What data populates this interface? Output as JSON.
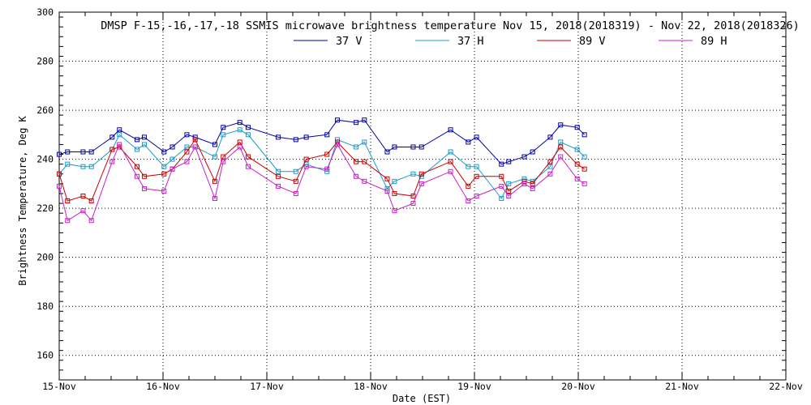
{
  "chart_data": {
    "type": "line",
    "title": "DMSP F-15,-16,-17,-18 SSMIS microwave brightness temperature Nov 15, 2018(2018319) - Nov 22, 2018(2018326)",
    "xlabel": "Date (EST)",
    "ylabel": "Brightness Temperature, Deg K",
    "xlim": [
      0,
      7
    ],
    "ylim": [
      150,
      300
    ],
    "yticks": [
      160,
      180,
      200,
      220,
      240,
      260,
      280,
      300
    ],
    "xtick_labels": [
      "15-Nov",
      "16-Nov",
      "17-Nov",
      "18-Nov",
      "19-Nov",
      "20-Nov",
      "21-Nov",
      "22-Nov"
    ],
    "grid": true,
    "legend_position": "top-center",
    "series": [
      {
        "name": "37 V",
        "color": "#0000a8",
        "points": [
          [
            0.0,
            242
          ],
          [
            0.08,
            243
          ],
          [
            0.23,
            243
          ],
          [
            0.31,
            243
          ],
          [
            0.51,
            249
          ],
          [
            0.58,
            252
          ],
          [
            0.75,
            248
          ],
          [
            0.82,
            249
          ],
          [
            1.01,
            243
          ],
          [
            1.09,
            245
          ],
          [
            1.23,
            250
          ],
          [
            1.31,
            249
          ],
          [
            1.5,
            246
          ],
          [
            1.58,
            253
          ],
          [
            1.74,
            255
          ],
          [
            1.82,
            253
          ],
          [
            2.11,
            249
          ],
          [
            2.28,
            248
          ],
          [
            2.38,
            249
          ],
          [
            2.58,
            250
          ],
          [
            2.68,
            256
          ],
          [
            2.86,
            255
          ],
          [
            2.94,
            256
          ],
          [
            3.16,
            243
          ],
          [
            3.23,
            245
          ],
          [
            3.41,
            245
          ],
          [
            3.49,
            245
          ],
          [
            3.77,
            252
          ],
          [
            3.94,
            247
          ],
          [
            4.02,
            249
          ],
          [
            4.26,
            238
          ],
          [
            4.33,
            239
          ],
          [
            4.48,
            241
          ],
          [
            4.56,
            243
          ],
          [
            4.73,
            249
          ],
          [
            4.83,
            254
          ],
          [
            4.99,
            253
          ],
          [
            5.06,
            250
          ]
        ]
      },
      {
        "name": "37 H",
        "color": "#189ccc",
        "points": [
          [
            0.0,
            234
          ],
          [
            0.08,
            238
          ],
          [
            0.23,
            237
          ],
          [
            0.31,
            237
          ],
          [
            0.51,
            244
          ],
          [
            0.58,
            250
          ],
          [
            0.75,
            244
          ],
          [
            0.82,
            246
          ],
          [
            1.01,
            237
          ],
          [
            1.09,
            240
          ],
          [
            1.23,
            245
          ],
          [
            1.31,
            245
          ],
          [
            1.5,
            241
          ],
          [
            1.58,
            250
          ],
          [
            1.74,
            252
          ],
          [
            1.82,
            250
          ],
          [
            2.11,
            235
          ],
          [
            2.28,
            235
          ],
          [
            2.38,
            238
          ],
          [
            2.58,
            235
          ],
          [
            2.68,
            248
          ],
          [
            2.86,
            245
          ],
          [
            2.94,
            247
          ],
          [
            3.16,
            228
          ],
          [
            3.23,
            231
          ],
          [
            3.41,
            234
          ],
          [
            3.49,
            233
          ],
          [
            3.77,
            243
          ],
          [
            3.94,
            237
          ],
          [
            4.02,
            237
          ],
          [
            4.26,
            224
          ],
          [
            4.33,
            230
          ],
          [
            4.48,
            232
          ],
          [
            4.56,
            231
          ],
          [
            4.73,
            237
          ],
          [
            4.83,
            247
          ],
          [
            4.99,
            244
          ],
          [
            5.06,
            241
          ]
        ]
      },
      {
        "name": "89 V",
        "color": "#cc0000",
        "points": [
          [
            0.0,
            234
          ],
          [
            0.08,
            223
          ],
          [
            0.23,
            225
          ],
          [
            0.31,
            223
          ],
          [
            0.51,
            244
          ],
          [
            0.58,
            245
          ],
          [
            0.75,
            237
          ],
          [
            0.82,
            233
          ],
          [
            1.01,
            234
          ],
          [
            1.09,
            236
          ],
          [
            1.23,
            243
          ],
          [
            1.31,
            248
          ],
          [
            1.5,
            231
          ],
          [
            1.58,
            241
          ],
          [
            1.74,
            247
          ],
          [
            1.82,
            241
          ],
          [
            2.11,
            233
          ],
          [
            2.28,
            231
          ],
          [
            2.38,
            240
          ],
          [
            2.58,
            242
          ],
          [
            2.68,
            247
          ],
          [
            2.86,
            239
          ],
          [
            2.94,
            239
          ],
          [
            3.16,
            232
          ],
          [
            3.23,
            226
          ],
          [
            3.41,
            225
          ],
          [
            3.49,
            234
          ],
          [
            3.77,
            239
          ],
          [
            3.94,
            229
          ],
          [
            4.02,
            233
          ],
          [
            4.26,
            233
          ],
          [
            4.33,
            227
          ],
          [
            4.48,
            231
          ],
          [
            4.56,
            230
          ],
          [
            4.73,
            239
          ],
          [
            4.83,
            245
          ],
          [
            4.99,
            238
          ],
          [
            5.06,
            236
          ]
        ]
      },
      {
        "name": "89 H",
        "color": "#c820c8",
        "points": [
          [
            0.0,
            229
          ],
          [
            0.08,
            215
          ],
          [
            0.23,
            219
          ],
          [
            0.31,
            215
          ],
          [
            0.51,
            239
          ],
          [
            0.58,
            246
          ],
          [
            0.75,
            233
          ],
          [
            0.82,
            228
          ],
          [
            1.01,
            227
          ],
          [
            1.09,
            236
          ],
          [
            1.23,
            239
          ],
          [
            1.31,
            245
          ],
          [
            1.5,
            224
          ],
          [
            1.58,
            239
          ],
          [
            1.74,
            245
          ],
          [
            1.82,
            237
          ],
          [
            2.11,
            229
          ],
          [
            2.28,
            226
          ],
          [
            2.38,
            237
          ],
          [
            2.58,
            236
          ],
          [
            2.68,
            246
          ],
          [
            2.86,
            233
          ],
          [
            2.94,
            231
          ],
          [
            3.16,
            227
          ],
          [
            3.23,
            219
          ],
          [
            3.41,
            222
          ],
          [
            3.49,
            230
          ],
          [
            3.77,
            235
          ],
          [
            3.94,
            223
          ],
          [
            4.02,
            225
          ],
          [
            4.26,
            229
          ],
          [
            4.33,
            225
          ],
          [
            4.48,
            230
          ],
          [
            4.56,
            228
          ],
          [
            4.73,
            234
          ],
          [
            4.83,
            241
          ],
          [
            4.99,
            232
          ],
          [
            5.06,
            230
          ]
        ]
      }
    ]
  }
}
